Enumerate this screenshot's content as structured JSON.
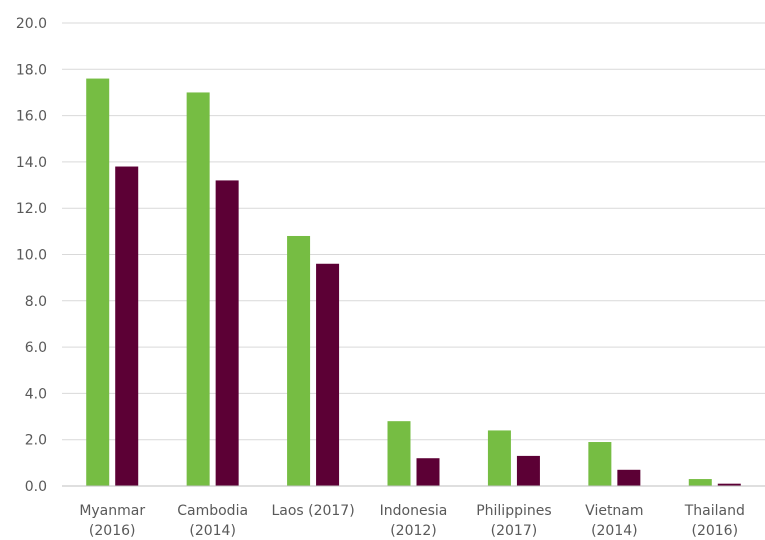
{
  "chart_data": {
    "type": "bar",
    "categories": [
      [
        "Myanmar",
        "(2016)"
      ],
      [
        "Cambodia",
        "(2014)"
      ],
      [
        "Laos (2017)"
      ],
      [
        "Indonesia",
        "(2012)"
      ],
      [
        "Philippines",
        "(2017)"
      ],
      [
        "Vietnam",
        "(2014)"
      ],
      [
        "Thailand",
        "(2016)"
      ]
    ],
    "series": [
      {
        "color": "#76bd43",
        "values": [
          17.6,
          17.0,
          10.8,
          2.8,
          2.4,
          1.9,
          0.3
        ]
      },
      {
        "color": "#5c0035",
        "values": [
          13.8,
          13.2,
          9.6,
          1.2,
          1.3,
          0.7,
          0.1
        ]
      }
    ],
    "yticks": [
      "0.0",
      "2.0",
      "4.0",
      "6.0",
      "8.0",
      "10.0",
      "12.0",
      "14.0",
      "16.0",
      "18.0",
      "20.0"
    ],
    "ylim": [
      0,
      20
    ],
    "grid": true
  }
}
